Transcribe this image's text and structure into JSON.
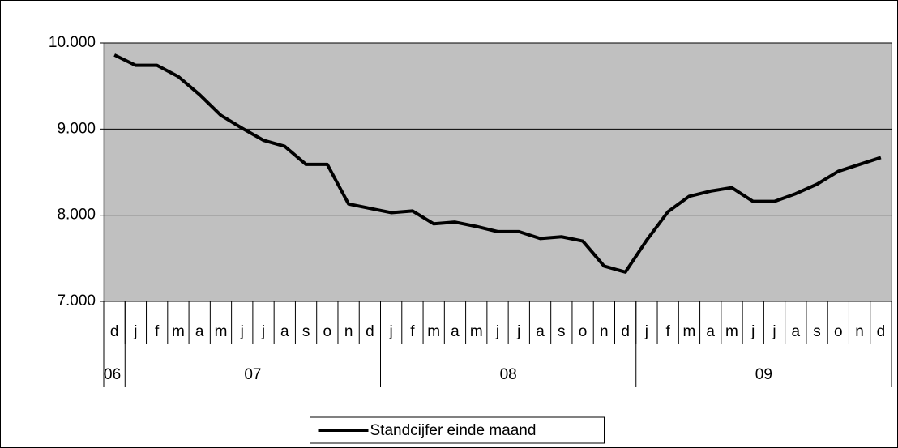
{
  "chart_data": {
    "type": "line",
    "categories": [
      "d",
      "j",
      "f",
      "m",
      "a",
      "m",
      "j",
      "j",
      "a",
      "s",
      "o",
      "n",
      "d",
      "j",
      "f",
      "m",
      "a",
      "m",
      "j",
      "j",
      "a",
      "s",
      "o",
      "n",
      "d",
      "j",
      "f",
      "m",
      "a",
      "m",
      "j",
      "j",
      "a",
      "s",
      "o",
      "n",
      "d"
    ],
    "groups": [
      {
        "label": "06",
        "span": 1
      },
      {
        "label": "07",
        "span": 12
      },
      {
        "label": "08",
        "span": 12
      },
      {
        "label": "09",
        "span": 12
      }
    ],
    "series": [
      {
        "name": "Standcijfer einde maand",
        "color": "#000000",
        "values": [
          9860,
          9740,
          9740,
          9610,
          9400,
          9160,
          9010,
          8870,
          8800,
          8590,
          8590,
          8130,
          8080,
          8030,
          8050,
          7900,
          7920,
          7870,
          7810,
          7810,
          7730,
          7750,
          7700,
          7410,
          7340,
          7710,
          8040,
          8220,
          8280,
          8320,
          8160,
          8160,
          8250,
          8360,
          8510,
          8590,
          8670
        ]
      }
    ],
    "ylim": [
      7000,
      10000
    ],
    "yticks": [
      {
        "value": 7000,
        "label": "7.000"
      },
      {
        "value": 8000,
        "label": "8.000"
      },
      {
        "value": 9000,
        "label": "9.000"
      },
      {
        "value": 10000,
        "label": "10.000"
      }
    ],
    "grid": true,
    "plot_background": "#c0c0c0",
    "legend": "bottom"
  }
}
